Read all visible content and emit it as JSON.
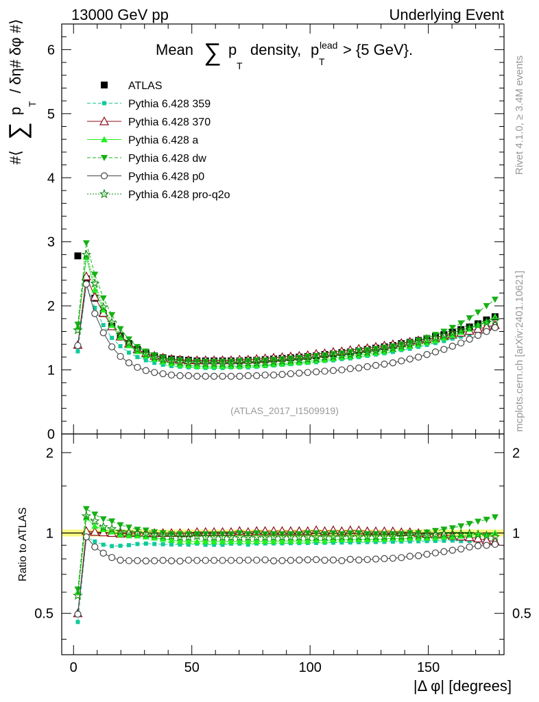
{
  "header": {
    "left": "13000 GeV pp",
    "right": "Underlying Event"
  },
  "side_labels": {
    "rivet": "Rivet 4.1.0, ≥ 3.4M events",
    "mcplots": "mcplots.cern.ch [arXiv:2401.10621]"
  },
  "watermark": "(ATLAS_2017_I1509919)",
  "colors": {
    "atlas": "#000000",
    "p359": "#11c99a",
    "p370": "#8b0a1a",
    "pa": "#22ee22",
    "pdw": "#16b016",
    "pp0": "#444444",
    "pq2o": "#0e8a0e",
    "band": "#f5f560"
  },
  "chart_data": {
    "type": "line",
    "title_main": "Mean",
    "title_sym": "∑",
    "title_p": "p",
    "title_T": "T",
    "title_rest": "density,",
    "title_p2": "p",
    "title_lead": "lead",
    "title_T2": "T",
    "title_cut": "> {5 GeV}.",
    "ylabel_prefix": "#⟨",
    "ylabel_sum": "∑",
    "ylabel_p": "p",
    "ylabel_T": "T",
    "ylabel_suffix": "/ δη# δφ #⟩",
    "ratio_ylabel": "Ratio to ATLAS",
    "xlabel": "|Δ φ| [degrees]",
    "xlim": [
      -5,
      182
    ],
    "ylim": [
      0,
      6.4
    ],
    "ratio_ylim": [
      0.35,
      2.35
    ],
    "x_ticks": [
      0,
      50,
      100,
      150
    ],
    "y_ticks": [
      0,
      1,
      2,
      3,
      4,
      5,
      6
    ],
    "ratio_ticks": [
      0.5,
      1,
      2
    ],
    "legend": [
      {
        "name": "ATLAS",
        "key": "atlas"
      },
      {
        "name": "Pythia 6.428 359",
        "key": "p359"
      },
      {
        "name": "Pythia 6.428 370",
        "key": "p370"
      },
      {
        "name": "Pythia 6.428 a",
        "key": "pa"
      },
      {
        "name": "Pythia 6.428 dw",
        "key": "pdw"
      },
      {
        "name": "Pythia 6.428 p0",
        "key": "pp0"
      },
      {
        "name": "Pythia 6.428 pro-q2o",
        "key": "pq2o"
      }
    ],
    "x": [
      1.8,
      5.4,
      9,
      12.6,
      16.2,
      19.8,
      23.4,
      27,
      30.6,
      34.2,
      37.8,
      41.4,
      45,
      48.6,
      52.2,
      55.8,
      59.4,
      63,
      66.6,
      70.2,
      73.8,
      77.4,
      81,
      84.6,
      88.2,
      91.8,
      95.4,
      99,
      102.6,
      106.2,
      109.8,
      113.4,
      117,
      120.6,
      124.2,
      127.8,
      131.4,
      135,
      138.6,
      142.2,
      145.8,
      149.4,
      153,
      156.6,
      160.2,
      163.8,
      167.4,
      171,
      174.6,
      178.2
    ],
    "series": [
      {
        "name": "ATLAS",
        "key": "atlas",
        "marker": "square",
        "values": [
          2.78,
          2.42,
          2.12,
          1.88,
          1.68,
          1.53,
          1.41,
          1.32,
          1.26,
          1.22,
          1.19,
          1.17,
          1.16,
          1.15,
          1.14,
          1.14,
          1.14,
          1.14,
          1.14,
          1.14,
          1.15,
          1.15,
          1.16,
          1.17,
          1.18,
          1.19,
          1.2,
          1.21,
          1.22,
          1.24,
          1.25,
          1.27,
          1.28,
          1.3,
          1.32,
          1.34,
          1.36,
          1.38,
          1.41,
          1.43,
          1.46,
          1.49,
          1.52,
          1.55,
          1.59,
          1.63,
          1.67,
          1.72,
          1.78,
          1.83
        ]
      },
      {
        "name": "Pythia 6.428 359",
        "key": "p359",
        "marker": "smallsquare",
        "values": [
          1.29,
          2.33,
          1.97,
          1.7,
          1.5,
          1.37,
          1.27,
          1.2,
          1.15,
          1.11,
          1.08,
          1.06,
          1.05,
          1.04,
          1.04,
          1.03,
          1.03,
          1.03,
          1.04,
          1.04,
          1.04,
          1.05,
          1.06,
          1.07,
          1.08,
          1.09,
          1.1,
          1.11,
          1.12,
          1.14,
          1.15,
          1.17,
          1.18,
          1.2,
          1.22,
          1.24,
          1.26,
          1.28,
          1.31,
          1.33,
          1.36,
          1.39,
          1.42,
          1.45,
          1.49,
          1.52,
          1.56,
          1.6,
          1.65,
          1.69
        ]
      },
      {
        "name": "Pythia 6.428 370",
        "key": "p370",
        "marker": "opentriangle",
        "values": [
          1.39,
          2.46,
          2.14,
          1.89,
          1.68,
          1.52,
          1.41,
          1.32,
          1.26,
          1.22,
          1.19,
          1.17,
          1.16,
          1.15,
          1.15,
          1.15,
          1.15,
          1.15,
          1.15,
          1.16,
          1.16,
          1.17,
          1.18,
          1.19,
          1.2,
          1.21,
          1.22,
          1.23,
          1.25,
          1.26,
          1.28,
          1.29,
          1.31,
          1.33,
          1.34,
          1.36,
          1.38,
          1.4,
          1.42,
          1.44,
          1.46,
          1.48,
          1.5,
          1.53,
          1.55,
          1.58,
          1.61,
          1.64,
          1.67,
          1.7
        ]
      },
      {
        "name": "Pythia 6.428 a",
        "key": "pa",
        "marker": "triangle",
        "values": [
          1.67,
          2.76,
          2.25,
          1.94,
          1.7,
          1.51,
          1.38,
          1.29,
          1.22,
          1.17,
          1.13,
          1.1,
          1.08,
          1.07,
          1.06,
          1.06,
          1.06,
          1.06,
          1.06,
          1.06,
          1.07,
          1.07,
          1.08,
          1.09,
          1.1,
          1.11,
          1.12,
          1.13,
          1.15,
          1.16,
          1.18,
          1.2,
          1.21,
          1.23,
          1.25,
          1.27,
          1.29,
          1.32,
          1.34,
          1.37,
          1.4,
          1.43,
          1.46,
          1.5,
          1.54,
          1.59,
          1.64,
          1.7,
          1.76,
          1.83
        ]
      },
      {
        "name": "Pythia 6.428 dw",
        "key": "pdw",
        "marker": "invtriangle",
        "values": [
          1.71,
          2.98,
          2.49,
          2.12,
          1.86,
          1.64,
          1.48,
          1.36,
          1.29,
          1.23,
          1.19,
          1.16,
          1.15,
          1.14,
          1.13,
          1.13,
          1.13,
          1.13,
          1.13,
          1.14,
          1.14,
          1.15,
          1.15,
          1.16,
          1.17,
          1.18,
          1.19,
          1.21,
          1.22,
          1.23,
          1.25,
          1.26,
          1.28,
          1.3,
          1.31,
          1.33,
          1.35,
          1.37,
          1.4,
          1.43,
          1.46,
          1.5,
          1.55,
          1.6,
          1.66,
          1.73,
          1.81,
          1.9,
          2.0,
          2.1
        ]
      },
      {
        "name": "Pythia 6.428 p0",
        "key": "pp0",
        "marker": "opencircle",
        "values": [
          1.38,
          2.34,
          1.88,
          1.58,
          1.36,
          1.21,
          1.11,
          1.04,
          0.99,
          0.96,
          0.94,
          0.92,
          0.91,
          0.91,
          0.9,
          0.9,
          0.9,
          0.9,
          0.9,
          0.9,
          0.91,
          0.91,
          0.92,
          0.92,
          0.93,
          0.94,
          0.95,
          0.96,
          0.97,
          0.98,
          0.99,
          1.0,
          1.02,
          1.03,
          1.05,
          1.07,
          1.09,
          1.11,
          1.14,
          1.17,
          1.2,
          1.24,
          1.28,
          1.32,
          1.37,
          1.42,
          1.48,
          1.54,
          1.6,
          1.66
        ]
      },
      {
        "name": "Pythia 6.428 pro-q2o",
        "key": "pq2o",
        "marker": "star",
        "values": [
          1.62,
          2.8,
          2.35,
          1.98,
          1.74,
          1.55,
          1.42,
          1.32,
          1.25,
          1.2,
          1.16,
          1.14,
          1.12,
          1.11,
          1.11,
          1.1,
          1.1,
          1.1,
          1.1,
          1.1,
          1.11,
          1.11,
          1.12,
          1.13,
          1.14,
          1.15,
          1.16,
          1.17,
          1.18,
          1.2,
          1.21,
          1.23,
          1.24,
          1.26,
          1.28,
          1.3,
          1.32,
          1.34,
          1.37,
          1.4,
          1.43,
          1.46,
          1.5,
          1.54,
          1.58,
          1.62,
          1.66,
          1.7,
          1.74,
          1.77
        ]
      }
    ]
  }
}
